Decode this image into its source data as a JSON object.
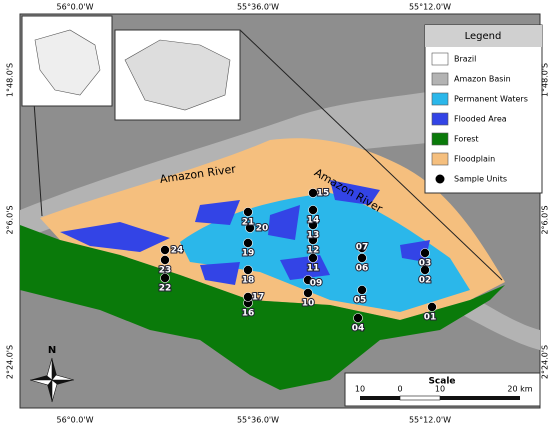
{
  "map": {
    "lon_labels": [
      "56°0.0'W",
      "55°36.0'W",
      "55°12.0'W"
    ],
    "lat_labels": [
      "1°48.0'S",
      "2°6.0'S",
      "2°24.0'S"
    ],
    "river_labels": [
      "Amazon River",
      "Amazon River"
    ],
    "legend": {
      "title": "Legend",
      "items": [
        "Brazil",
        "Amazon Basin",
        "Permanent Waters",
        "Flooded Area",
        "Forest",
        "Floodplain",
        "Sample Units"
      ]
    },
    "sample_units": [
      "01",
      "02",
      "03",
      "04",
      "05",
      "06",
      "07",
      "09",
      "10",
      "11",
      "12",
      "13",
      "14",
      "15",
      "16",
      "17",
      "18",
      "19",
      "20",
      "21",
      "22",
      "23",
      "24"
    ],
    "north": "N",
    "scale": {
      "title": "Scale",
      "labels": [
        "10",
        "0",
        "10",
        "20 km"
      ]
    }
  }
}
